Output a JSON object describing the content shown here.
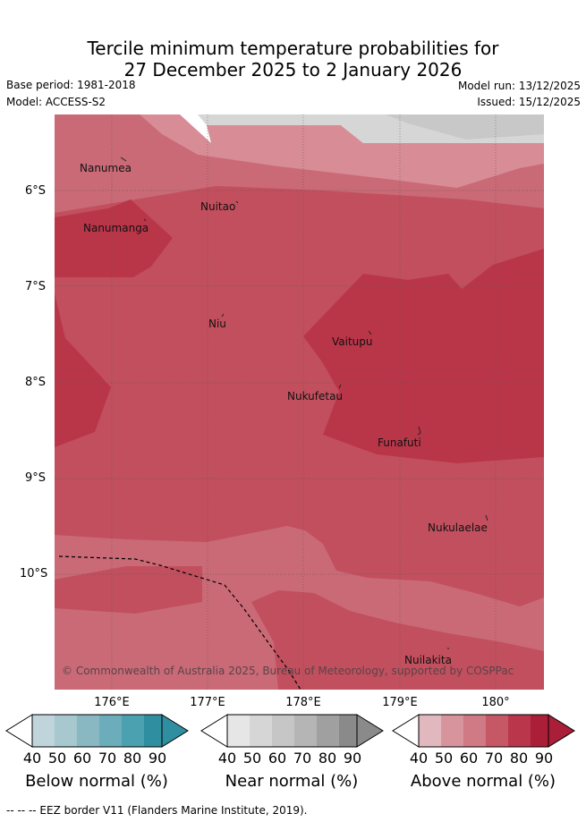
{
  "title": {
    "line1": "Tercile minimum temperature probabilities for",
    "line2": "27 December 2025 to 2 January 2026"
  },
  "meta": {
    "base_period": "Base period: 1981-2018",
    "model": "Model: ACCESS-S2",
    "model_run": "Model run: 13/12/2025",
    "issued": "Issued: 15/12/2025"
  },
  "axes": {
    "lat_labels": [
      "6°S",
      "7°S",
      "8°S",
      "9°S",
      "10°S"
    ],
    "lon_labels": [
      "176°E",
      "177°E",
      "178°E",
      "179°E",
      "180°"
    ]
  },
  "islands": [
    {
      "name": "Nanumea"
    },
    {
      "name": "Nuitao"
    },
    {
      "name": "Nanumanga"
    },
    {
      "name": "Niu"
    },
    {
      "name": "Vaitupu"
    },
    {
      "name": "Nukufetau"
    },
    {
      "name": "Funafuti"
    },
    {
      "name": "Nukulaelae"
    },
    {
      "name": "Nuilakita"
    }
  ],
  "copyright": "© Commonwealth of Australia 2025, Bureau of Meteorology, supported by COSPPac",
  "colorbars": [
    {
      "title": "Below normal (%)",
      "ticks": [
        "40",
        "50",
        "60",
        "70",
        "80",
        "90"
      ],
      "colors": [
        "#bfd5db",
        "#a6c8ce",
        "#89b7c2",
        "#6badba",
        "#4ba1b0",
        "#2f8ea0"
      ]
    },
    {
      "title": "Near normal (%)",
      "ticks": [
        "40",
        "50",
        "60",
        "70",
        "80",
        "90"
      ],
      "colors": [
        "#e6e6e6",
        "#d6d6d6",
        "#c6c6c6",
        "#b5b5b5",
        "#a0a0a0",
        "#8a8a8a"
      ]
    },
    {
      "title": "Above normal (%)",
      "ticks": [
        "40",
        "50",
        "60",
        "70",
        "80",
        "90"
      ],
      "colors": [
        "#e2b8bf",
        "#d8949c",
        "#cf7a84",
        "#c65765",
        "#b9364b",
        "#ab1e38"
      ]
    }
  ],
  "footer": "--  --  -- EEZ border V11 (Flanders Marine Institute, 2019).",
  "colors": {
    "above_60_70": "#c96a76",
    "above_70_80": "#c24f5d",
    "above_80_90": "#b93649",
    "above_50_60": "#d78c96",
    "near_50_60": "#d6d6d6",
    "near_60_70": "#c8c8c8"
  }
}
